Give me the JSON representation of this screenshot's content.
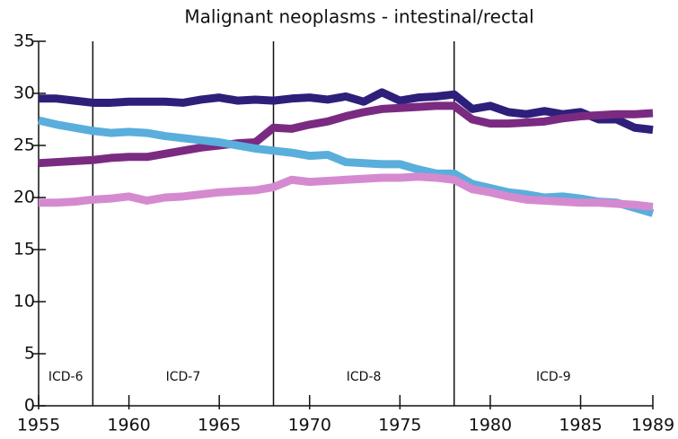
{
  "chart_data": {
    "type": "line",
    "title": "Malignant neoplasms - intestinal/rectal",
    "x": [
      1955,
      1956,
      1957,
      1958,
      1959,
      1960,
      1961,
      1962,
      1963,
      1964,
      1965,
      1966,
      1967,
      1968,
      1969,
      1970,
      1971,
      1972,
      1973,
      1974,
      1975,
      1976,
      1977,
      1978,
      1979,
      1980,
      1981,
      1982,
      1983,
      1984,
      1985,
      1986,
      1987,
      1988,
      1989
    ],
    "series": [
      {
        "color": "#2e1f7a",
        "values": [
          29.5,
          29.5,
          29.3,
          29.1,
          29.1,
          29.2,
          29.2,
          29.2,
          29.1,
          29.4,
          29.6,
          29.3,
          29.4,
          29.3,
          29.5,
          29.6,
          29.4,
          29.7,
          29.2,
          30.1,
          29.3,
          29.6,
          29.7,
          29.9,
          28.5,
          28.8,
          28.2,
          28.0,
          28.3,
          28.0,
          28.2,
          27.5,
          27.5,
          26.7,
          26.5
        ]
      },
      {
        "color": "#7b2a82",
        "values": [
          23.3,
          23.4,
          23.5,
          23.6,
          23.8,
          23.9,
          23.9,
          24.2,
          24.5,
          24.8,
          25.0,
          25.2,
          25.3,
          26.7,
          26.6,
          27.0,
          27.3,
          27.8,
          28.2,
          28.5,
          28.6,
          28.7,
          28.8,
          28.8,
          27.5,
          27.1,
          27.1,
          27.2,
          27.3,
          27.6,
          27.8,
          27.9,
          28.0,
          28.0,
          28.1
        ]
      },
      {
        "color": "#5aaedb",
        "values": [
          27.4,
          27.0,
          26.7,
          26.4,
          26.2,
          26.3,
          26.2,
          25.9,
          25.7,
          25.5,
          25.3,
          25.0,
          24.7,
          24.5,
          24.3,
          24.0,
          24.1,
          23.4,
          23.3,
          23.2,
          23.2,
          22.7,
          22.3,
          22.3,
          21.3,
          20.9,
          20.5,
          20.3,
          20.0,
          20.1,
          19.9,
          19.6,
          19.5,
          19.0,
          18.5
        ]
      },
      {
        "color": "#d58ad0",
        "values": [
          19.5,
          19.5,
          19.6,
          19.8,
          19.9,
          20.1,
          19.7,
          20.0,
          20.1,
          20.3,
          20.5,
          20.6,
          20.7,
          21.0,
          21.7,
          21.5,
          21.6,
          21.7,
          21.8,
          21.9,
          21.9,
          22.0,
          21.9,
          21.7,
          20.8,
          20.5,
          20.1,
          19.8,
          19.7,
          19.6,
          19.5,
          19.5,
          19.4,
          19.3,
          19.1
        ]
      }
    ],
    "xlim": [
      1955,
      1989
    ],
    "xticks": [
      1955,
      1960,
      1965,
      1970,
      1975,
      1980,
      1985,
      1989
    ],
    "ylim": [
      0,
      35
    ],
    "yticks": [
      0,
      5,
      10,
      15,
      20,
      25,
      30,
      35
    ],
    "dividers": [
      1958,
      1968,
      1978
    ],
    "annotations": [
      "ICD-6",
      "ICD-7",
      "ICD-8",
      "ICD-9"
    ]
  }
}
